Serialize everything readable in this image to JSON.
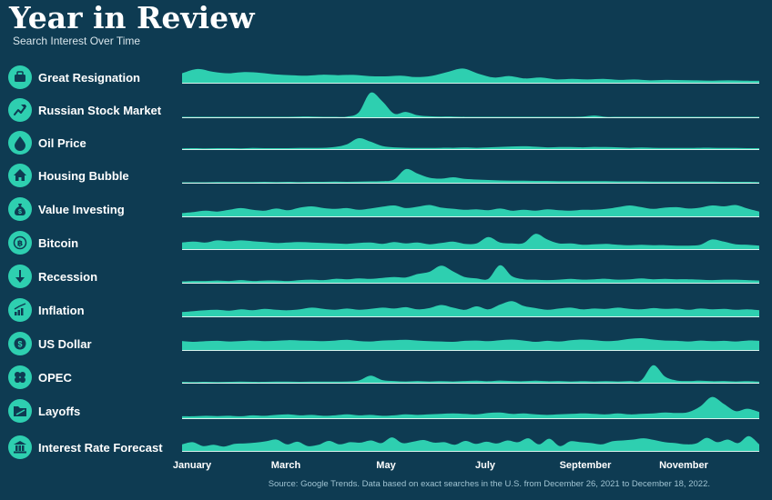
{
  "header": {
    "title": "Year in Review",
    "subtitle": "Search Interest Over Time"
  },
  "footer": {
    "source": "Source: Google Trends. Data based on exact searches in the U.S. from December 26, 2021 to December 18, 2022."
  },
  "colors": {
    "background": "#0e3b52",
    "area": "#2ecfb0",
    "baseline": "#d8f3ee",
    "icon_circle": "#2ecfb0",
    "icon_glyph": "#0e3b52"
  },
  "chart_data": {
    "type": "area",
    "x_tick_labels": [
      "January",
      "March",
      "May",
      "July",
      "September",
      "November"
    ],
    "x_range": [
      "2021-12-26",
      "2022-12-18"
    ],
    "y_range": [
      0,
      100
    ],
    "series": [
      {
        "name": "Great Resignation",
        "icon": "briefcase-icon",
        "values": [
          40,
          58,
          46,
          40,
          45,
          42,
          35,
          32,
          30,
          34,
          32,
          33,
          28,
          27,
          30,
          24,
          29,
          45,
          60,
          38,
          22,
          28,
          18,
          22,
          14,
          16,
          14,
          16,
          12,
          14,
          10,
          12,
          11,
          10,
          9,
          10,
          9,
          8
        ]
      },
      {
        "name": "Russian Stock Market",
        "icon": "trending-up-icon",
        "values": [
          2,
          2,
          2,
          2,
          2,
          2,
          2,
          2,
          2,
          2,
          3,
          3,
          2,
          2,
          3,
          20,
          100,
          65,
          15,
          22,
          8,
          4,
          3,
          3,
          2,
          2,
          2,
          2,
          2,
          2,
          2,
          2,
          2,
          2,
          3,
          7,
          2,
          2,
          2,
          2,
          2,
          2,
          2,
          2,
          2,
          2,
          2,
          2,
          2,
          2
        ]
      },
      {
        "name": "Oil Price",
        "icon": "droplet-icon",
        "values": [
          3,
          4,
          3,
          4,
          4,
          3,
          5,
          4,
          4,
          4,
          5,
          5,
          6,
          10,
          22,
          50,
          34,
          14,
          8,
          6,
          5,
          5,
          6,
          6,
          7,
          6,
          8,
          10,
          12,
          13,
          11,
          8,
          9,
          9,
          8,
          10,
          9,
          8,
          6,
          7,
          6,
          5,
          5,
          5,
          6,
          6,
          5,
          5,
          4,
          4
        ]
      },
      {
        "name": "Housing Bubble",
        "icon": "house-icon",
        "values": [
          2,
          2,
          2,
          3,
          3,
          3,
          3,
          4,
          3,
          4,
          3,
          4,
          4,
          5,
          4,
          5,
          6,
          7,
          14,
          60,
          40,
          22,
          18,
          24,
          17,
          14,
          12,
          10,
          9,
          9,
          8,
          8,
          7,
          7,
          7,
          7,
          7,
          6,
          6,
          6,
          5,
          5,
          5,
          5,
          5,
          5,
          4,
          4,
          4,
          3
        ]
      },
      {
        "name": "Value Investing",
        "icon": "money-bag-icon",
        "values": [
          15,
          20,
          26,
          22,
          30,
          38,
          30,
          26,
          36,
          28,
          40,
          46,
          38,
          34,
          38,
          30,
          36,
          44,
          50,
          38,
          44,
          52,
          40,
          35,
          30,
          32,
          28,
          36,
          26,
          30,
          26,
          32,
          28,
          26,
          30,
          30,
          34,
          42,
          50,
          42,
          34,
          40,
          42,
          36,
          40,
          50,
          46,
          52,
          36,
          22
        ]
      },
      {
        "name": "Bitcoin",
        "icon": "bitcoin-icon",
        "values": [
          30,
          34,
          30,
          40,
          36,
          40,
          36,
          32,
          28,
          30,
          32,
          30,
          28,
          26,
          24,
          28,
          30,
          24,
          32,
          26,
          30,
          22,
          28,
          34,
          24,
          26,
          55,
          30,
          26,
          28,
          70,
          44,
          26,
          26,
          20,
          22,
          24,
          20,
          18,
          20,
          18,
          18,
          16,
          16,
          20,
          44,
          34,
          22,
          20,
          16
        ]
      },
      {
        "name": "Recession",
        "icon": "arrow-down-icon",
        "values": [
          6,
          8,
          8,
          10,
          8,
          12,
          8,
          10,
          10,
          8,
          12,
          14,
          12,
          18,
          16,
          20,
          18,
          22,
          26,
          24,
          40,
          50,
          78,
          52,
          26,
          20,
          18,
          80,
          30,
          16,
          14,
          12,
          14,
          18,
          14,
          16,
          18,
          14,
          16,
          20,
          16,
          18,
          16,
          16,
          14,
          12,
          14,
          14,
          12,
          10
        ]
      },
      {
        "name": "Inflation",
        "icon": "chart-up-icon",
        "values": [
          20,
          24,
          28,
          30,
          26,
          32,
          28,
          34,
          30,
          28,
          32,
          40,
          34,
          30,
          36,
          30,
          34,
          40,
          36,
          42,
          32,
          38,
          52,
          40,
          30,
          46,
          32,
          54,
          70,
          48,
          38,
          30,
          36,
          40,
          32,
          36,
          34,
          40,
          34,
          32,
          38,
          34,
          36,
          30,
          36,
          32,
          34,
          30,
          32,
          28
        ]
      },
      {
        "name": "US Dollar",
        "icon": "dollar-icon",
        "values": [
          55,
          50,
          54,
          56,
          52,
          55,
          58,
          54,
          56,
          60,
          58,
          56,
          54,
          58,
          62,
          55,
          52,
          58,
          60,
          62,
          58,
          54,
          52,
          50,
          56,
          58,
          54,
          60,
          64,
          58,
          50,
          56,
          52,
          60,
          64,
          60,
          54,
          58,
          68,
          72,
          64,
          58,
          56,
          52,
          58,
          54,
          56,
          52,
          58,
          56
        ]
      },
      {
        "name": "OPEC",
        "icon": "clover-icon",
        "values": [
          4,
          3,
          4,
          3,
          4,
          5,
          4,
          4,
          5,
          5,
          4,
          5,
          5,
          5,
          6,
          10,
          32,
          12,
          8,
          6,
          8,
          6,
          7,
          6,
          8,
          9,
          7,
          10,
          8,
          7,
          9,
          7,
          8,
          6,
          7,
          6,
          7,
          6,
          8,
          12,
          80,
          28,
          10,
          8,
          9,
          7,
          8,
          6,
          7,
          5
        ]
      },
      {
        "name": "Layoffs",
        "icon": "folder-icon",
        "values": [
          8,
          8,
          10,
          9,
          10,
          8,
          12,
          10,
          14,
          16,
          12,
          14,
          10,
          12,
          16,
          12,
          14,
          10,
          12,
          16,
          14,
          16,
          18,
          20,
          18,
          16,
          22,
          24,
          18,
          20,
          16,
          14,
          16,
          18,
          20,
          18,
          16,
          20,
          16,
          18,
          20,
          24,
          22,
          26,
          50,
          90,
          60,
          30,
          40,
          26
        ]
      },
      {
        "name": "Interest Rate Forecast",
        "icon": "bank-icon",
        "values": [
          30,
          40,
          22,
          28,
          20,
          32,
          34,
          38,
          44,
          52,
          30,
          42,
          22,
          28,
          46,
          30,
          40,
          38,
          48,
          36,
          62,
          36,
          42,
          50,
          38,
          40,
          28,
          46,
          32,
          42,
          34,
          48,
          40,
          58,
          30,
          56,
          22,
          44,
          40,
          36,
          30,
          44,
          48,
          52,
          58,
          50,
          40,
          36,
          30,
          34,
          60,
          40,
          52,
          36,
          68,
          30
        ]
      }
    ]
  }
}
